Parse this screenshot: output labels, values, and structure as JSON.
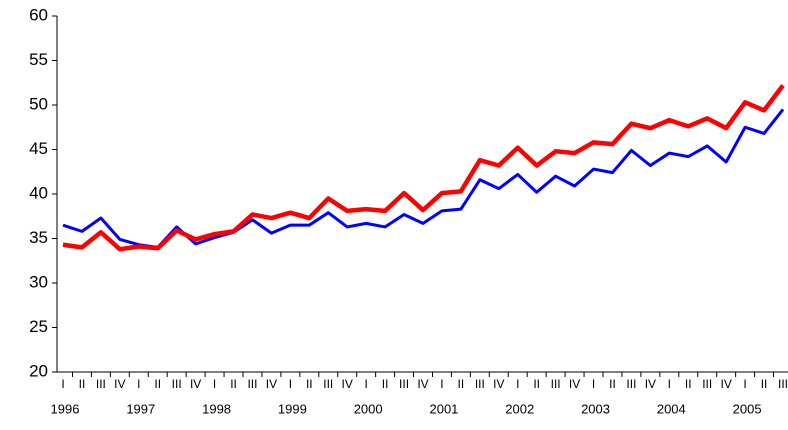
{
  "chart_data": {
    "type": "line",
    "categories": [
      "I",
      "II",
      "III",
      "IV",
      "I",
      "II",
      "III",
      "IV",
      "I",
      "II",
      "III",
      "IV",
      "I",
      "II",
      "III",
      "IV",
      "I",
      "II",
      "III",
      "IV",
      "I",
      "II",
      "III",
      "IV",
      "I",
      "II",
      "III",
      "IV",
      "I",
      "II",
      "III",
      "IV",
      "I",
      "II",
      "III",
      "IV",
      "I",
      "II",
      "III"
    ],
    "years": [
      "1996",
      "1997",
      "1998",
      "1999",
      "2000",
      "2001",
      "2002",
      "2003",
      "2004",
      "2005"
    ],
    "series": [
      {
        "color": "#0000ff",
        "values": [
          36.5,
          35.8,
          37.3,
          34.9,
          34.3,
          34.0,
          36.3,
          34.4,
          35.1,
          35.7,
          37.1,
          35.6,
          36.5,
          36.5,
          37.9,
          36.3,
          36.7,
          36.3,
          37.7,
          36.7,
          38.1,
          38.3,
          41.6,
          40.6,
          42.2,
          40.2,
          42.0,
          40.9,
          42.8,
          42.4,
          44.9,
          43.2,
          44.6,
          44.2,
          45.4,
          43.6,
          47.5,
          46.8,
          49.5
        ]
      },
      {
        "color": "#ff0000",
        "values": [
          34.3,
          34.0,
          35.7,
          33.8,
          34.1,
          33.9,
          35.9,
          34.9,
          35.5,
          35.8,
          37.7,
          37.3,
          37.9,
          37.3,
          39.5,
          38.1,
          38.3,
          38.1,
          40.1,
          38.2,
          40.1,
          40.3,
          43.8,
          43.2,
          45.2,
          43.2,
          44.8,
          44.6,
          45.8,
          45.6,
          47.9,
          47.4,
          48.3,
          47.6,
          48.5,
          47.4,
          50.3,
          49.4,
          52.2
        ]
      }
    ],
    "ylim": [
      20,
      60
    ],
    "yticks": [
      20,
      25,
      30,
      35,
      40,
      45,
      50,
      55,
      60
    ]
  }
}
